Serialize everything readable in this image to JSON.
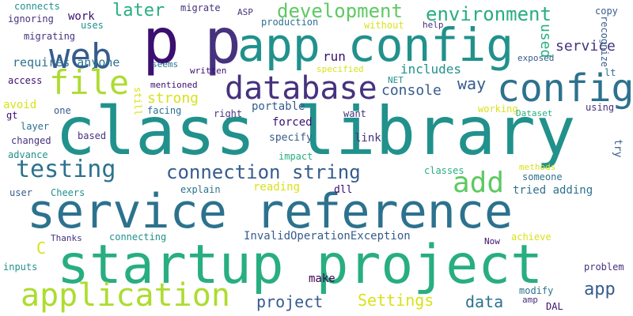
{
  "palette": {
    "navy": "#46327e",
    "purple": "#3b0f70",
    "indigo": "#365c8d",
    "blue": "#2c728e",
    "teal": "#21918c",
    "green": "#28ae80",
    "lime": "#5ec962",
    "yellowgreen": "#addc30",
    "yellow": "#d8e219",
    "darkpurple": "#440154"
  },
  "words": [
    "class library",
    "startup project",
    "service reference",
    "p",
    "p",
    "app config",
    "config",
    "web",
    "file",
    "database",
    "application",
    "testing",
    "connection string",
    "add",
    "development",
    "environment",
    "later",
    "data",
    "project",
    "Settings",
    "app",
    "service",
    "way",
    "console",
    "strong",
    "includes",
    "run",
    "used",
    "recognize",
    "requires anyone",
    "try",
    "InvalidOperationException",
    "C",
    "forced",
    "link",
    "specify",
    "reading",
    "dll",
    "tried adding",
    "portable",
    "make",
    "copy",
    "migrate",
    "ASP",
    "production",
    "connects",
    "work",
    "ignoring",
    "uses",
    "without",
    "help",
    "migrating",
    "seems",
    "written",
    "exposed",
    "mentioned",
    "access",
    "specified",
    "NET",
    "avoid",
    "one",
    "gt",
    "facing",
    "right",
    "want",
    "working",
    "Dataset",
    "using",
    "lt",
    "layer",
    "still",
    "changed",
    "based",
    "impact",
    "advance",
    "explain",
    "user",
    "Cheers",
    "someone",
    "methods",
    "classes",
    "Thanks",
    "connecting",
    "achieve",
    "Now",
    "inputs",
    "problem",
    "modify",
    "amp",
    "DAL"
  ]
}
